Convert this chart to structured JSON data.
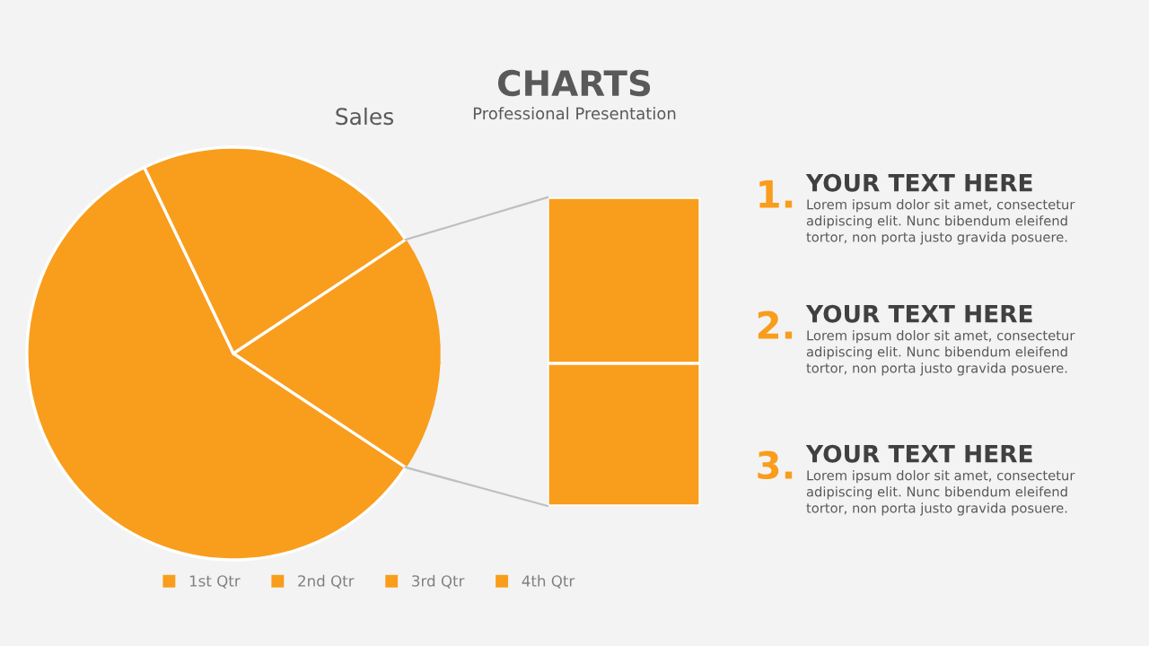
{
  "chart_data": [
    {
      "type": "pie",
      "title": "Sales",
      "categories": [
        "1st Qtr",
        "2nd Qtr",
        "3rd Qtr",
        "4th Qtr"
      ],
      "values": [
        58.6,
        22.8,
        10.0,
        8.6
      ],
      "colors": [
        "#f99d1c",
        "#f99d1c",
        "#f99d1c",
        "#f99d1c"
      ],
      "legend": "bottom"
    },
    {
      "type": "other",
      "title": "CHARTS",
      "subtitle": "Professional Presentation",
      "annotations": [
        "1.",
        "YOUR TEXT HERE",
        "Lorem ipsum dolor sit amet, consectetur\nadipiscing elit. Nunc bibendum eleifend\ntortor, non porta justo gravida posuere.",
        "2.",
        "YOUR TEXT HERE",
        "Lorem ipsum dolor sit amet, consectetur\nadipiscing elit. Nunc bibendum eleifend\ntortor, non porta justo gravida posuere.",
        "3.",
        "YOUR TEXT HERE",
        "Lorem ipsum dolor sit amet, consectetur\nadipiscing elit. Nunc bibendum eleifend\ntortor, non porta justo gravida posuere."
      ]
    }
  ]
}
